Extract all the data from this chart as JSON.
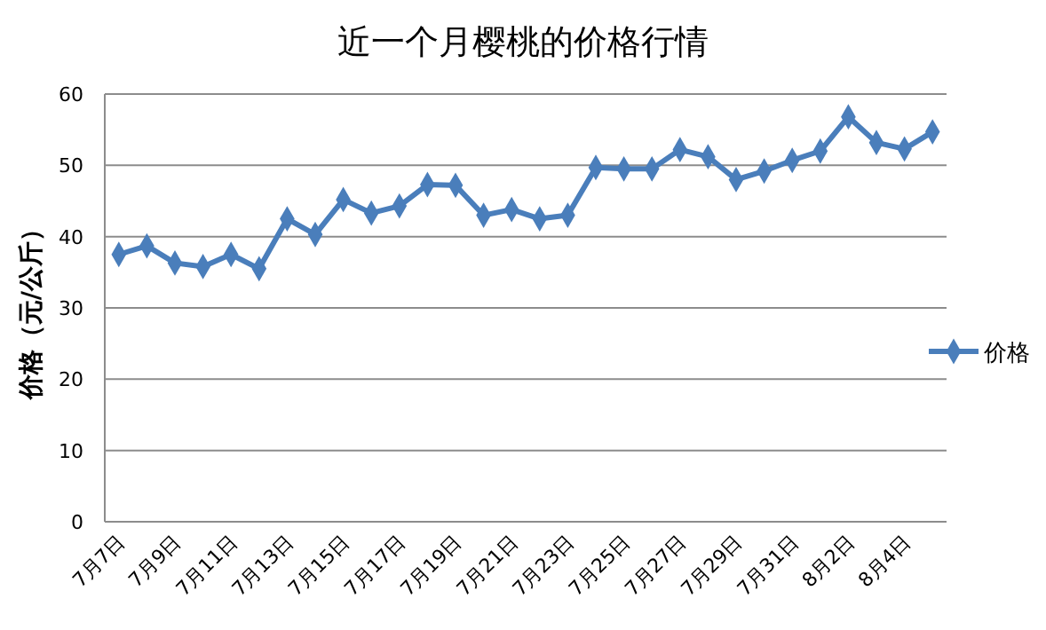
{
  "chart_data": {
    "type": "line",
    "title": "近一个月樱桃的价格行情",
    "ylabel": "价格（元/公斤）",
    "categories": [
      "7月7日",
      null,
      "7月9日",
      null,
      "7月11日",
      null,
      "7月13日",
      null,
      "7月15日",
      null,
      "7月17日",
      null,
      "7月19日",
      null,
      "7月21日",
      null,
      "7月23日",
      null,
      "7月25日",
      null,
      "7月27日",
      null,
      "7月29日",
      null,
      "7月31日",
      null,
      "8月2日",
      null,
      "8月4日",
      null
    ],
    "series": [
      {
        "name": "价格",
        "color": "#4a7ebb",
        "values": [
          37.5,
          38.7,
          36.3,
          35.8,
          37.5,
          35.5,
          42.5,
          40.3,
          45.2,
          43.3,
          44.3,
          47.3,
          47.2,
          43,
          43.8,
          42.5,
          43,
          49.7,
          49.5,
          49.5,
          52.2,
          51.2,
          48,
          49.2,
          50.7,
          52,
          56.8,
          53.2,
          52.3,
          54.7
        ]
      }
    ],
    "ylim": [
      0,
      60
    ],
    "yticks": [
      0,
      10,
      20,
      30,
      40,
      50,
      60
    ],
    "grid": "y",
    "legend": "right",
    "marker": "diamond",
    "line_style": "solid"
  }
}
